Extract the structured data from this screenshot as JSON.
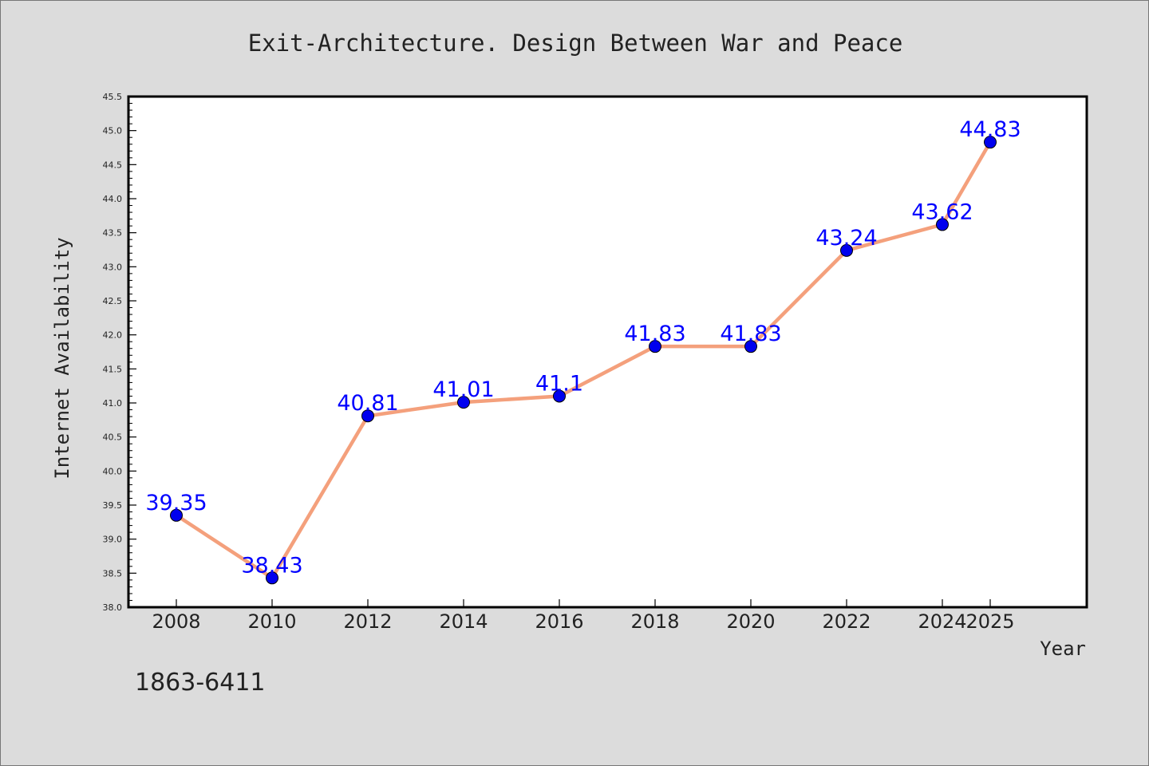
{
  "chart_data": {
    "type": "line",
    "title": "Exit-Architecture. Design Between War and Peace",
    "xlabel": "Year",
    "ylabel": "Internet Availability",
    "footnote": "1863-6411",
    "categories": [
      "2008",
      "2010",
      "2012",
      "2014",
      "2016",
      "2018",
      "2020",
      "2022",
      "2024",
      "2025"
    ],
    "values": [
      39.35,
      38.43,
      40.81,
      41.01,
      41.1,
      41.83,
      41.83,
      43.24,
      43.62,
      44.83
    ],
    "data_labels": [
      "39.35",
      "38.43",
      "40.81",
      "41.01",
      "41.1",
      "41.83",
      "41.83",
      "43.24",
      "43.62",
      "44.83"
    ],
    "ylim": [
      38.0,
      45.5
    ],
    "y_ticks": [
      "38.0",
      "38.5",
      "39.0",
      "39.5",
      "40.0",
      "40.5",
      "41.0",
      "41.5",
      "42.0",
      "42.5",
      "43.0",
      "43.5",
      "44.0",
      "44.5",
      "45.0",
      "45.5"
    ],
    "grid": false,
    "legend": "none",
    "colors": {
      "line": "#f4a07c",
      "marker": "#0000ee",
      "data_label": "#0000ff",
      "background": "#dcdcdc",
      "plot_area": "#ffffff"
    }
  }
}
